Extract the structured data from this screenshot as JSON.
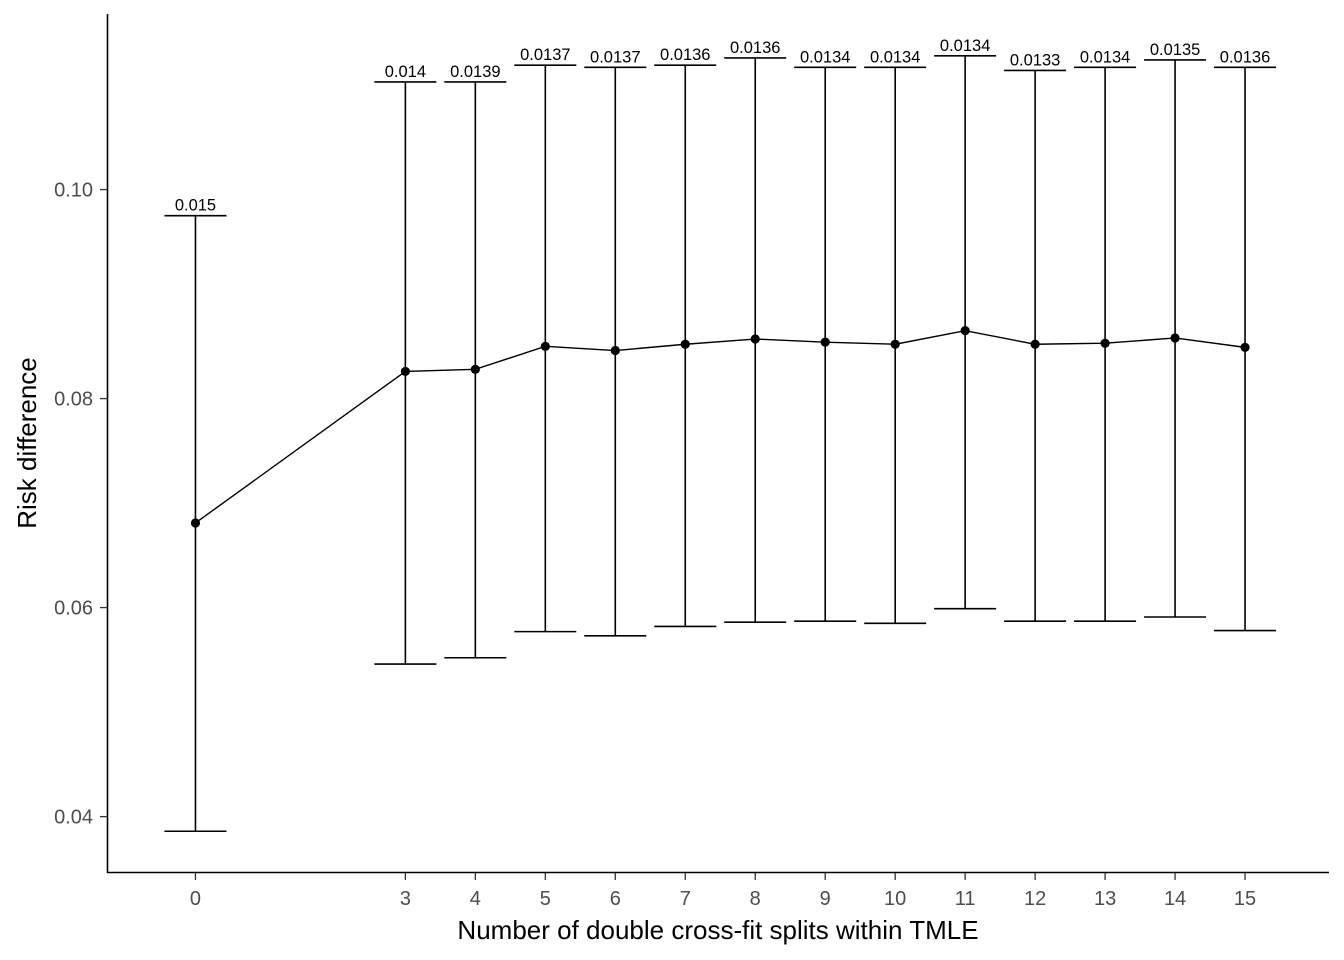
{
  "chart_data": {
    "type": "line",
    "xlabel": "Number of double cross-fit splits within TMLE",
    "ylabel": "Risk difference",
    "x_ticks": [
      0,
      3,
      4,
      5,
      6,
      7,
      8,
      9,
      10,
      11,
      12,
      13,
      14,
      15
    ],
    "y_ticks": [
      0.04,
      0.06,
      0.08,
      0.1
    ],
    "y_tick_labels": [
      "0.04",
      "0.06",
      "0.08",
      "0.10"
    ],
    "xlim": [
      -1.25,
      16.2
    ],
    "ylim": [
      0.0347,
      0.1168
    ],
    "grid": false,
    "legend": "none",
    "points": [
      {
        "x": 0,
        "y": 0.0681,
        "lower": 0.0386,
        "upper": 0.0975,
        "label": "0.015"
      },
      {
        "x": 3,
        "y": 0.0826,
        "lower": 0.0546,
        "upper": 0.1103,
        "label": "0.014"
      },
      {
        "x": 4,
        "y": 0.0828,
        "lower": 0.0552,
        "upper": 0.1103,
        "label": "0.0139"
      },
      {
        "x": 5,
        "y": 0.085,
        "lower": 0.0577,
        "upper": 0.1119,
        "label": "0.0137"
      },
      {
        "x": 6,
        "y": 0.0846,
        "lower": 0.0573,
        "upper": 0.1117,
        "label": "0.0137"
      },
      {
        "x": 7,
        "y": 0.0852,
        "lower": 0.0582,
        "upper": 0.1119,
        "label": "0.0136"
      },
      {
        "x": 8,
        "y": 0.0857,
        "lower": 0.0586,
        "upper": 0.1126,
        "label": "0.0136"
      },
      {
        "x": 9,
        "y": 0.0854,
        "lower": 0.0587,
        "upper": 0.1117,
        "label": "0.0134"
      },
      {
        "x": 10,
        "y": 0.0852,
        "lower": 0.0585,
        "upper": 0.1117,
        "label": "0.0134"
      },
      {
        "x": 11,
        "y": 0.0865,
        "lower": 0.0599,
        "upper": 0.1128,
        "label": "0.0134"
      },
      {
        "x": 12,
        "y": 0.0852,
        "lower": 0.0587,
        "upper": 0.1114,
        "label": "0.0133"
      },
      {
        "x": 13,
        "y": 0.0853,
        "lower": 0.0587,
        "upper": 0.1117,
        "label": "0.0134"
      },
      {
        "x": 14,
        "y": 0.0858,
        "lower": 0.0591,
        "upper": 0.1124,
        "label": "0.0135"
      },
      {
        "x": 15,
        "y": 0.0849,
        "lower": 0.0578,
        "upper": 0.1117,
        "label": "0.0136"
      }
    ]
  }
}
